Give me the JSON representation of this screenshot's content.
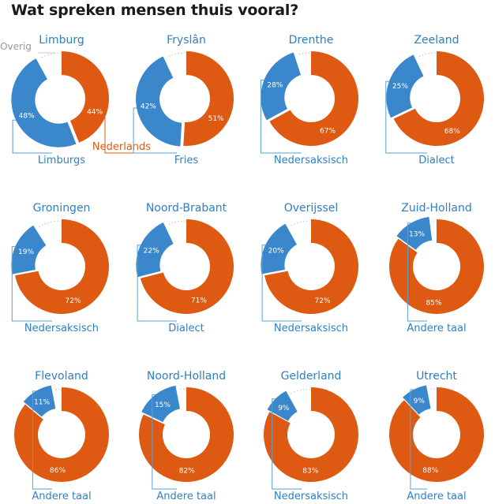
{
  "title": "Wat spreken mensen thuis vooral?",
  "colors": {
    "dutch": "#de5a12",
    "other_language": "#3a87cc",
    "overig": "#c8c8c8",
    "title_text": "#1a1a1a",
    "label_text": "#2f7fc3",
    "leader_line": "#5a9fd6",
    "pct_text": "#ffffff"
  },
  "legend": {
    "overig": "Overig",
    "nederlands": "Nederlands"
  },
  "chart_data": [
    {
      "type": "donut",
      "title": "Limburg",
      "series": [
        {
          "name": "Nederlands",
          "value": 44
        },
        {
          "name": "Limburgs",
          "value": 48
        },
        {
          "name": "Overig",
          "value": 8
        }
      ],
      "labels": {
        "dutch": "44%",
        "other": "48%"
      },
      "other_name": "Limburgs"
    },
    {
      "type": "donut",
      "title": "Fryslân",
      "series": [
        {
          "name": "Nederlands",
          "value": 51
        },
        {
          "name": "Fries",
          "value": 42
        },
        {
          "name": "Overig",
          "value": 7
        }
      ],
      "labels": {
        "dutch": "51%",
        "other": "42%"
      },
      "other_name": "Fries"
    },
    {
      "type": "donut",
      "title": "Drenthe",
      "series": [
        {
          "name": "Nederlands",
          "value": 67
        },
        {
          "name": "Nedersaksisch",
          "value": 28
        },
        {
          "name": "Overig",
          "value": 5
        }
      ],
      "labels": {
        "dutch": "67%",
        "other": "28%"
      },
      "other_name": "Nedersaksisch"
    },
    {
      "type": "donut",
      "title": "Zeeland",
      "series": [
        {
          "name": "Nederlands",
          "value": 68
        },
        {
          "name": "Dialect",
          "value": 25
        },
        {
          "name": "Overig",
          "value": 7
        }
      ],
      "labels": {
        "dutch": "68%",
        "other": "25%"
      },
      "other_name": "Dialect"
    },
    {
      "type": "donut",
      "title": "Groningen",
      "series": [
        {
          "name": "Nederlands",
          "value": 72
        },
        {
          "name": "Nedersaksisch",
          "value": 19
        },
        {
          "name": "Overig",
          "value": 9
        }
      ],
      "labels": {
        "dutch": "72%",
        "other": "19%"
      },
      "other_name": "Nedersaksisch"
    },
    {
      "type": "donut",
      "title": "Noord-Brabant",
      "series": [
        {
          "name": "Nederlands",
          "value": 71
        },
        {
          "name": "Dialect",
          "value": 22
        },
        {
          "name": "Overig",
          "value": 7
        }
      ],
      "labels": {
        "dutch": "71%",
        "other": "22%"
      },
      "other_name": "Dialect"
    },
    {
      "type": "donut",
      "title": "Overijssel",
      "series": [
        {
          "name": "Nederlands",
          "value": 72
        },
        {
          "name": "Nedersaksisch",
          "value": 20
        },
        {
          "name": "Overig",
          "value": 8
        }
      ],
      "labels": {
        "dutch": "72%",
        "other": "20%"
      },
      "other_name": "Nedersaksisch"
    },
    {
      "type": "donut",
      "title": "Zuid-Holland",
      "series": [
        {
          "name": "Nederlands",
          "value": 85
        },
        {
          "name": "Andere taal",
          "value": 13
        },
        {
          "name": "Overig",
          "value": 2
        }
      ],
      "labels": {
        "dutch": "85%",
        "other": "13%"
      },
      "other_name": "Andere taal"
    },
    {
      "type": "donut",
      "title": "Flevoland",
      "series": [
        {
          "name": "Nederlands",
          "value": 86
        },
        {
          "name": "Andere taal",
          "value": 11
        },
        {
          "name": "Overig",
          "value": 3
        }
      ],
      "labels": {
        "dutch": "86%",
        "other": "11%"
      },
      "other_name": "Andere taal"
    },
    {
      "type": "donut",
      "title": "Noord-Holland",
      "series": [
        {
          "name": "Nederlands",
          "value": 82
        },
        {
          "name": "Andere taal",
          "value": 15
        },
        {
          "name": "Overig",
          "value": 3
        }
      ],
      "labels": {
        "dutch": "82%",
        "other": "15%"
      },
      "other_name": "Andere taal"
    },
    {
      "type": "donut",
      "title": "Gelderland",
      "series": [
        {
          "name": "Nederlands",
          "value": 83
        },
        {
          "name": "Nedersaksisch",
          "value": 9
        },
        {
          "name": "Overig",
          "value": 8
        }
      ],
      "labels": {
        "dutch": "83%",
        "other": "9%"
      },
      "other_name": "Nedersaksisch"
    },
    {
      "type": "donut",
      "title": "Utrecht",
      "series": [
        {
          "name": "Nederlands",
          "value": 88
        },
        {
          "name": "Andere taal",
          "value": 9
        },
        {
          "name": "Overig",
          "value": 3
        }
      ],
      "labels": {
        "dutch": "88%",
        "other": "9%"
      },
      "other_name": "Andere taal"
    }
  ]
}
